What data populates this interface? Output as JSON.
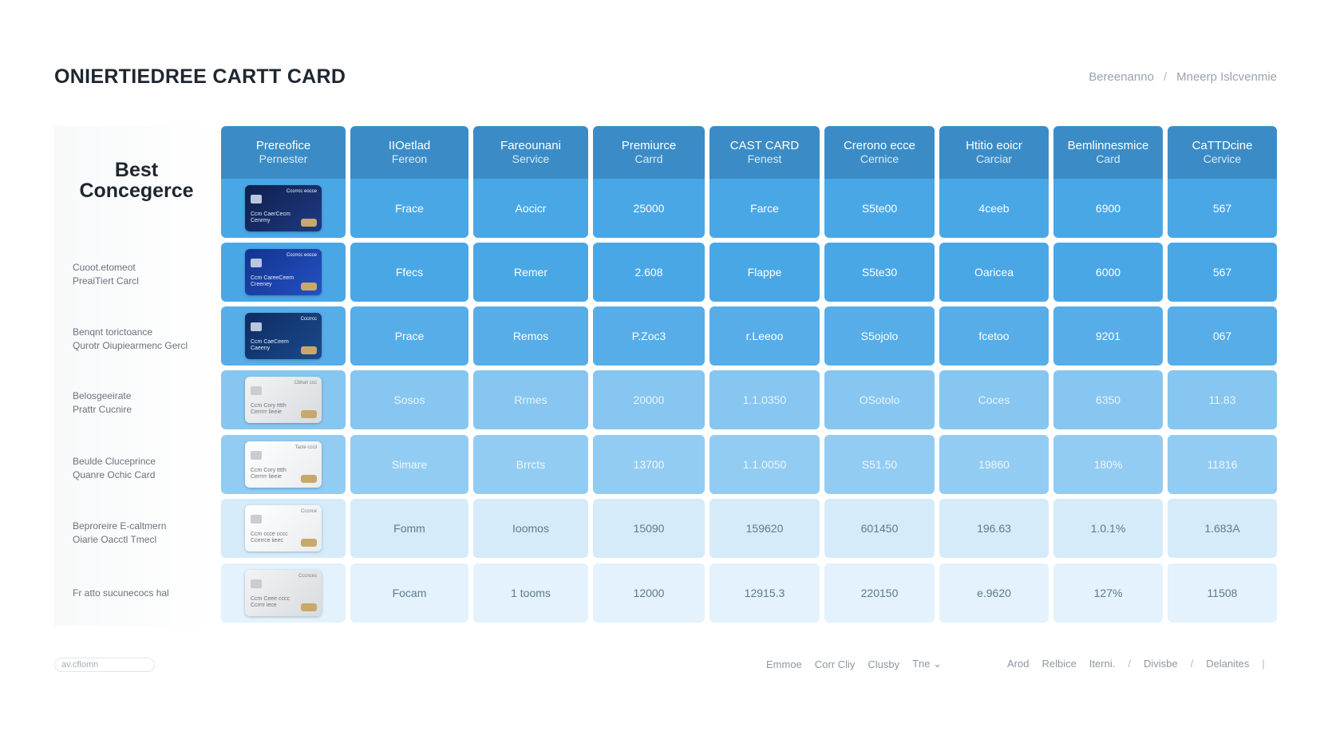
{
  "header": {
    "title": "ONIERTIEDREE CARTT CARD",
    "breadcrumb": [
      "Bereenanno",
      "Mneerp Islcvenmie"
    ]
  },
  "left_heading": {
    "line1": "Best",
    "line2": "Concegerce"
  },
  "row_labels": [
    [
      "",
      ""
    ],
    [
      "Cuoot.etomeot",
      "PreaiTiert Carcl"
    ],
    [
      "Benqnt torictoance",
      "Qurotr Oiupiearmenc Gercl"
    ],
    [
      "Belosgeeirate",
      "Prattr Cucnire"
    ],
    [
      "Beulde Cluceprince",
      "Quanre Ochic Card"
    ],
    [
      "Beproreire E-caltmern",
      "Oiarie Oacctl Tmecl"
    ],
    [
      "Fr atto sucunecocs hal",
      ""
    ]
  ],
  "columns": [
    {
      "l1": "Prereofice",
      "l2": "Pernester"
    },
    {
      "l1": "IIOetlad",
      "l2": "Fereon"
    },
    {
      "l1": "Fareounani",
      "l2": "Service"
    },
    {
      "l1": "Premiurce",
      "l2": "Carrd"
    },
    {
      "l1": "CAST CARD",
      "l2": "Fenest"
    },
    {
      "l1": "Crerono ecce",
      "l2": "Cernice"
    },
    {
      "l1": "Htitio eoicr",
      "l2": "Carciar"
    },
    {
      "l1": "Bemlinnesmice",
      "l2": "Card"
    },
    {
      "l1": "CaTTDcine",
      "l2": "Cervice"
    }
  ],
  "cards": [
    {
      "style": "dark1",
      "brand": "Cccrrcc eocce",
      "name": "Ccm CaerCecm Cenrmy"
    },
    {
      "style": "dark2",
      "brand": "Cccrrcc eocce",
      "name": "Ccm CareeCeem Creeney"
    },
    {
      "style": "dark3",
      "brand": "Cccrrcc",
      "name": "Ccm CaeCeem Caeeny"
    },
    {
      "style": "light",
      "brand": "Cbhan ccc",
      "name": "Ccm Cory tttth Cerrrrr lieeie"
    },
    {
      "style": "white",
      "brand": "Tacle cccil",
      "name": "Ccm Cory tttth Cerrrrr lieeie"
    },
    {
      "style": "white",
      "brand": "Cccnce",
      "name": "Ccm ccce cccc Ccerrce iieec"
    },
    {
      "style": "light",
      "brand": "Cccnces",
      "name": "Ccm Ceee cccc Ccrrrr iece"
    }
  ],
  "rows": [
    [
      "Frace",
      "Aocicr",
      "25000",
      "Farce",
      "S5te00",
      "4ceeb",
      "6900",
      "567"
    ],
    [
      "Ffecs",
      "Remer",
      "2.608",
      "Flappe",
      "S5te30",
      "Oaricea",
      "6000",
      "567"
    ],
    [
      "Prace",
      "Remos",
      "P.Zoc3",
      "r.Leeoo",
      "S5ojolo",
      "fcetoo",
      "9201",
      "067"
    ],
    [
      "Sosos",
      "Rrmes",
      "20000",
      "1.1.0350",
      "OSotolo",
      "Coces",
      "6350",
      "11.83"
    ],
    [
      "Simare",
      "Brrcts",
      "13700",
      "1.1.0050",
      "S51.50",
      "19860",
      "180%",
      "11816"
    ],
    [
      "Fomm",
      "Ioomos",
      "15090",
      "159620",
      "601450",
      "196.63",
      "1.0.1%",
      "1.683A"
    ],
    [
      "Focam",
      "1 tooms",
      "12000",
      "12915.3",
      "220150",
      "e.9620",
      "127%",
      "11508"
    ]
  ],
  "footer": {
    "search_placeholder": "av.cflomn",
    "links_left": [
      "Emmoe",
      "Corr Cliy",
      "Clusby",
      "Tne ⌄"
    ],
    "links_right": [
      "Arod",
      "Relbice",
      "Iterni.",
      "/",
      "Divisbe",
      "/",
      "Delanites",
      "|"
    ]
  },
  "colors": {
    "header_blue": "#3b8cc6",
    "row_tints": [
      "#4aa7e6",
      "#4aa7e6",
      "#57ade8",
      "#86c6f0",
      "#93ccf2",
      "#d5ebfa",
      "#e3f2fc"
    ]
  }
}
